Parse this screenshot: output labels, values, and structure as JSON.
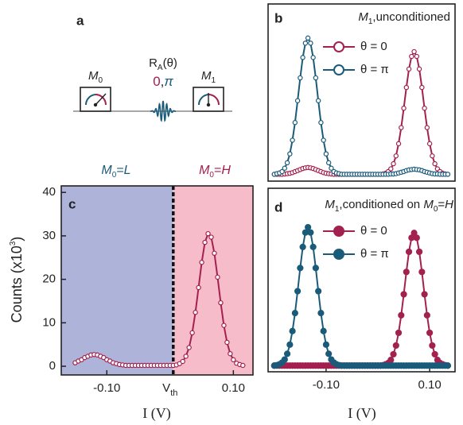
{
  "diagram": {
    "label": "a",
    "meters": [
      [
        "M",
        "0"
      ],
      [
        "M",
        "1"
      ]
    ],
    "pulse": {
      "label": [
        "R",
        "A",
        "(θ)"
      ],
      "phases": [
        "0",
        ",",
        "π"
      ]
    }
  },
  "chart_data": [
    {
      "type": "line",
      "label": "b",
      "title": [
        "M",
        "1",
        ",unconditioned"
      ],
      "marker": "open",
      "x": [
        -0.2,
        -0.195,
        -0.19,
        -0.185,
        -0.18,
        -0.175,
        -0.17,
        -0.165,
        -0.16,
        -0.155,
        -0.15,
        -0.145,
        -0.14,
        -0.135,
        -0.13,
        -0.125,
        -0.12,
        -0.115,
        -0.11,
        -0.105,
        -0.1,
        -0.095,
        -0.09,
        -0.085,
        -0.08,
        -0.075,
        -0.07,
        -0.065,
        -0.06,
        -0.055,
        -0.05,
        -0.045,
        -0.04,
        -0.035,
        -0.03,
        -0.025,
        -0.02,
        -0.015,
        -0.01,
        -0.005,
        0,
        0.005,
        0.01,
        0.015,
        0.02,
        0.025,
        0.03,
        0.035,
        0.04,
        0.045,
        0.05,
        0.055,
        0.06,
        0.065,
        0.07,
        0.075,
        0.08,
        0.085,
        0.09,
        0.095,
        0.1,
        0.105,
        0.11,
        0.115,
        0.12,
        0.125,
        0.13,
        0.135
      ],
      "series": [
        {
          "name": "θ = 0",
          "color": "#a3214f",
          "values": [
            0.5,
            0.5,
            0.5,
            0.5,
            0.6,
            0.7,
            0.8,
            1.0,
            1.3,
            1.6,
            1.9,
            2.2,
            2.4,
            2.5,
            2.4,
            2.2,
            1.9,
            1.6,
            1.3,
            1.0,
            0.8,
            0.7,
            0.6,
            0.5,
            0.5,
            0.5,
            0.5,
            0.5,
            0.5,
            0.5,
            0.5,
            0.5,
            0.5,
            0.5,
            0.5,
            0.5,
            0.5,
            0.5,
            0.5,
            0.5,
            0.5,
            0.5,
            0.6,
            0.8,
            1.3,
            2.1,
            3.6,
            5.9,
            9.5,
            14.2,
            19.9,
            26.0,
            31.4,
            35.1,
            36.5,
            35.1,
            31.4,
            26.0,
            19.9,
            14.2,
            9.5,
            5.9,
            3.6,
            2.1,
            1.3,
            0.8,
            0.6,
            0.5
          ]
        },
        {
          "name": "θ = π",
          "color": "#1b5b7a",
          "values": [
            0.5,
            0.7,
            0.9,
            1.3,
            2.3,
            3.9,
            6.5,
            10.5,
            15.7,
            22.1,
            28.8,
            34.8,
            39.0,
            40.5,
            39.0,
            34.8,
            28.8,
            22.1,
            15.7,
            10.5,
            6.5,
            3.9,
            2.3,
            1.3,
            0.9,
            0.7,
            0.5,
            0.5,
            0.5,
            0.5,
            0.5,
            0.5,
            0.5,
            0.5,
            0.5,
            0.5,
            0.5,
            0.5,
            0.5,
            0.5,
            0.5,
            0.5,
            0.5,
            0.5,
            0.5,
            0.6,
            0.6,
            0.7,
            0.9,
            1.1,
            1.3,
            1.6,
            1.8,
            1.9,
            2.0,
            1.9,
            1.8,
            1.6,
            1.3,
            1.1,
            0.9,
            0.7,
            0.6,
            0.6,
            0.5,
            0.5,
            0.5,
            0.5
          ]
        }
      ],
      "xlim": [
        -0.212,
        0.149
      ],
      "ylim": [
        -1.5,
        50.5
      ]
    },
    {
      "type": "line",
      "label": "c",
      "marker": "open",
      "xlabel": "I (V)",
      "ylabel": [
        "Counts (x10",
        "3",
        ")"
      ],
      "region_labels": [
        [
          "M",
          "0",
          "=",
          "L"
        ],
        [
          "M",
          "0",
          "=",
          "H"
        ]
      ],
      "shading": [
        "#aeb3da",
        "#f7bcca"
      ],
      "x": [
        -0.15,
        -0.145,
        -0.14,
        -0.135,
        -0.13,
        -0.125,
        -0.12,
        -0.115,
        -0.11,
        -0.105,
        -0.1,
        -0.095,
        -0.09,
        -0.085,
        -0.08,
        -0.075,
        -0.07,
        -0.065,
        -0.06,
        -0.055,
        -0.05,
        -0.045,
        -0.04,
        -0.035,
        -0.03,
        -0.025,
        -0.02,
        -0.015,
        -0.01,
        -0.005,
        0,
        0.005,
        0.01,
        0.015,
        0.02,
        0.025,
        0.03,
        0.035,
        0.04,
        0.045,
        0.05,
        0.055,
        0.06,
        0.065,
        0.07,
        0.075,
        0.08,
        0.085,
        0.09,
        0.095,
        0.1,
        0.105,
        0.11,
        0.115
      ],
      "color": "#a3214f",
      "values": [
        0.8,
        1.2,
        1.5,
        2.0,
        2.3,
        2.6,
        2.7,
        2.6,
        2.3,
        2.0,
        1.5,
        1.2,
        0.8,
        0.6,
        0.4,
        0.3,
        0.2,
        0.2,
        0.2,
        0.2,
        0.2,
        0.2,
        0.2,
        0.2,
        0.2,
        0.2,
        0.2,
        0.2,
        0.2,
        0.2,
        0.2,
        0.2,
        0.3,
        0.6,
        1.1,
        2.3,
        4.3,
        7.7,
        12.4,
        18.1,
        23.9,
        28.5,
        30.5,
        29.7,
        26.0,
        20.5,
        14.6,
        9.4,
        5.5,
        2.9,
        1.5,
        0.7,
        0.4,
        0.2
      ],
      "xlim": [
        -0.172,
        0.131
      ],
      "ylim": [
        -2,
        41.5
      ],
      "xticks": [
        {
          "value": -0.1,
          "label": "-0.10"
        },
        {
          "value": 0.005,
          "label": [
            "V",
            "th"
          ]
        },
        {
          "value": 0.1,
          "label": "0.10"
        }
      ],
      "yticks": [
        0,
        10,
        20,
        30,
        40
      ]
    },
    {
      "type": "line",
      "label": "d",
      "title": [
        "M",
        "1",
        ",conditioned on ",
        "M",
        "0",
        "=",
        "H"
      ],
      "marker": "filled",
      "xlabel": "I (V)",
      "x": [
        -0.2,
        -0.195,
        -0.19,
        -0.185,
        -0.18,
        -0.175,
        -0.17,
        -0.165,
        -0.16,
        -0.155,
        -0.15,
        -0.145,
        -0.14,
        -0.135,
        -0.13,
        -0.125,
        -0.12,
        -0.115,
        -0.11,
        -0.105,
        -0.1,
        -0.095,
        -0.09,
        -0.085,
        -0.08,
        -0.075,
        -0.07,
        -0.065,
        -0.06,
        -0.055,
        -0.05,
        -0.045,
        -0.04,
        -0.035,
        -0.03,
        -0.025,
        -0.02,
        -0.015,
        -0.01,
        -0.005,
        0,
        0.005,
        0.01,
        0.015,
        0.02,
        0.025,
        0.03,
        0.035,
        0.04,
        0.045,
        0.05,
        0.055,
        0.06,
        0.065,
        0.07,
        0.075,
        0.08,
        0.085,
        0.09,
        0.095,
        0.1,
        0.105,
        0.11,
        0.115,
        0.12,
        0.125,
        0.13,
        0.135
      ],
      "series": [
        {
          "name": "θ = 0",
          "color": "#a3214f",
          "values": [
            0.3,
            0.3,
            0.3,
            0.3,
            0.3,
            0.3,
            0.3,
            0.3,
            0.3,
            0.3,
            0.3,
            0.3,
            0.3,
            0.3,
            0.3,
            0.3,
            0.3,
            0.3,
            0.3,
            0.3,
            0.3,
            0.3,
            0.3,
            0.3,
            0.3,
            0.3,
            0.3,
            0.3,
            0.3,
            0.3,
            0.3,
            0.3,
            0.3,
            0.3,
            0.3,
            0.3,
            0.3,
            0.3,
            0.3,
            0.3,
            0.3,
            0.3,
            0.4,
            0.6,
            0.9,
            1.6,
            2.9,
            4.9,
            7.8,
            11.8,
            16.6,
            21.7,
            26.3,
            29.5,
            30.6,
            29.5,
            26.3,
            21.7,
            16.6,
            11.8,
            7.8,
            4.9,
            2.9,
            1.6,
            0.9,
            0.6,
            0.4,
            0.3
          ]
        },
        {
          "name": "θ = π",
          "color": "#1b5b7a",
          "values": [
            0.3,
            0.4,
            0.6,
            1.0,
            1.7,
            3.0,
            5.1,
            8.2,
            12.3,
            17.3,
            22.6,
            27.4,
            30.7,
            31.9,
            30.7,
            27.4,
            22.6,
            17.3,
            12.3,
            8.2,
            5.1,
            3.0,
            1.7,
            1.0,
            0.6,
            0.4,
            0.3,
            0.3,
            0.3,
            0.3,
            0.3,
            0.3,
            0.3,
            0.3,
            0.3,
            0.3,
            0.3,
            0.3,
            0.3,
            0.3,
            0.3,
            0.3,
            0.3,
            0.3,
            0.3,
            0.3,
            0.3,
            0.3,
            0.3,
            0.3,
            0.3,
            0.3,
            0.3,
            0.3,
            0.3,
            0.3,
            0.3,
            0.3,
            0.3,
            0.3,
            0.3,
            0.3,
            0.3,
            0.3,
            0.3,
            0.3,
            0.3,
            0.3
          ]
        }
      ],
      "xlim": [
        -0.212,
        0.149
      ],
      "ylim": [
        -1.1,
        40.8
      ],
      "xticks": [
        {
          "value": -0.1,
          "label": "-0.10"
        },
        {
          "value": 0.1,
          "label": "0.10"
        }
      ]
    }
  ]
}
